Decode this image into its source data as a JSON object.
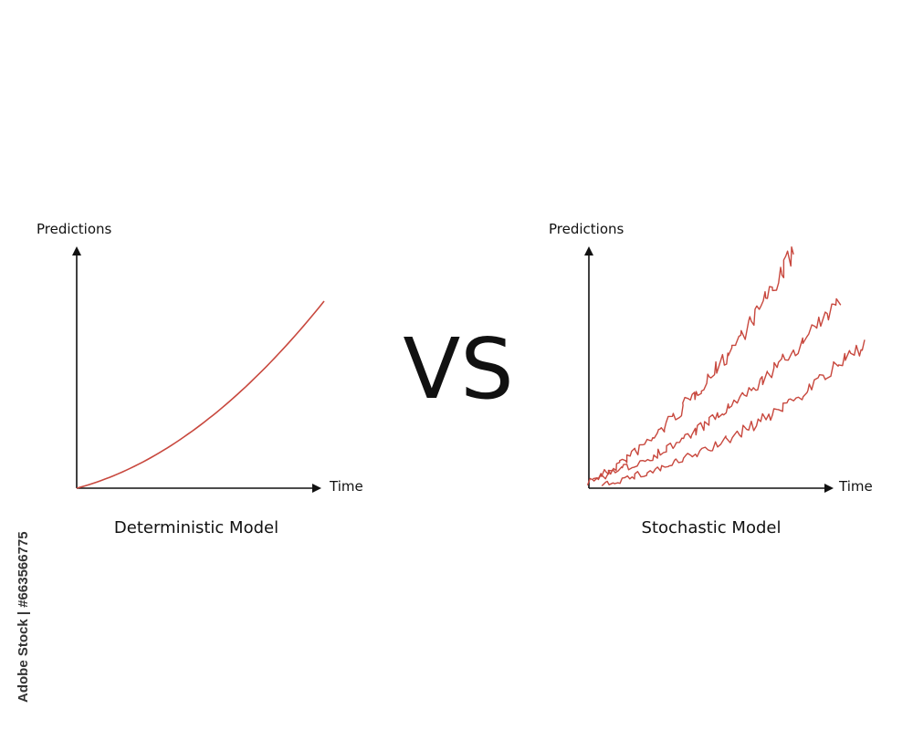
{
  "colors": {
    "curve": "#c8483e",
    "axis": "#111111",
    "text": "#111111"
  },
  "vs_label": "VS",
  "watermark": "Adobe Stock | #663566775",
  "panels": [
    {
      "name": "deterministic",
      "y_label": "Predictions",
      "x_label": "Time",
      "caption": "Deterministic Model",
      "curve_kind": "smooth-exponential"
    },
    {
      "name": "stochastic",
      "y_label": "Predictions",
      "x_label": "Time",
      "caption": "Stochastic Model",
      "curve_kind": "noisy-random-paths",
      "path_count": 3
    }
  ]
}
